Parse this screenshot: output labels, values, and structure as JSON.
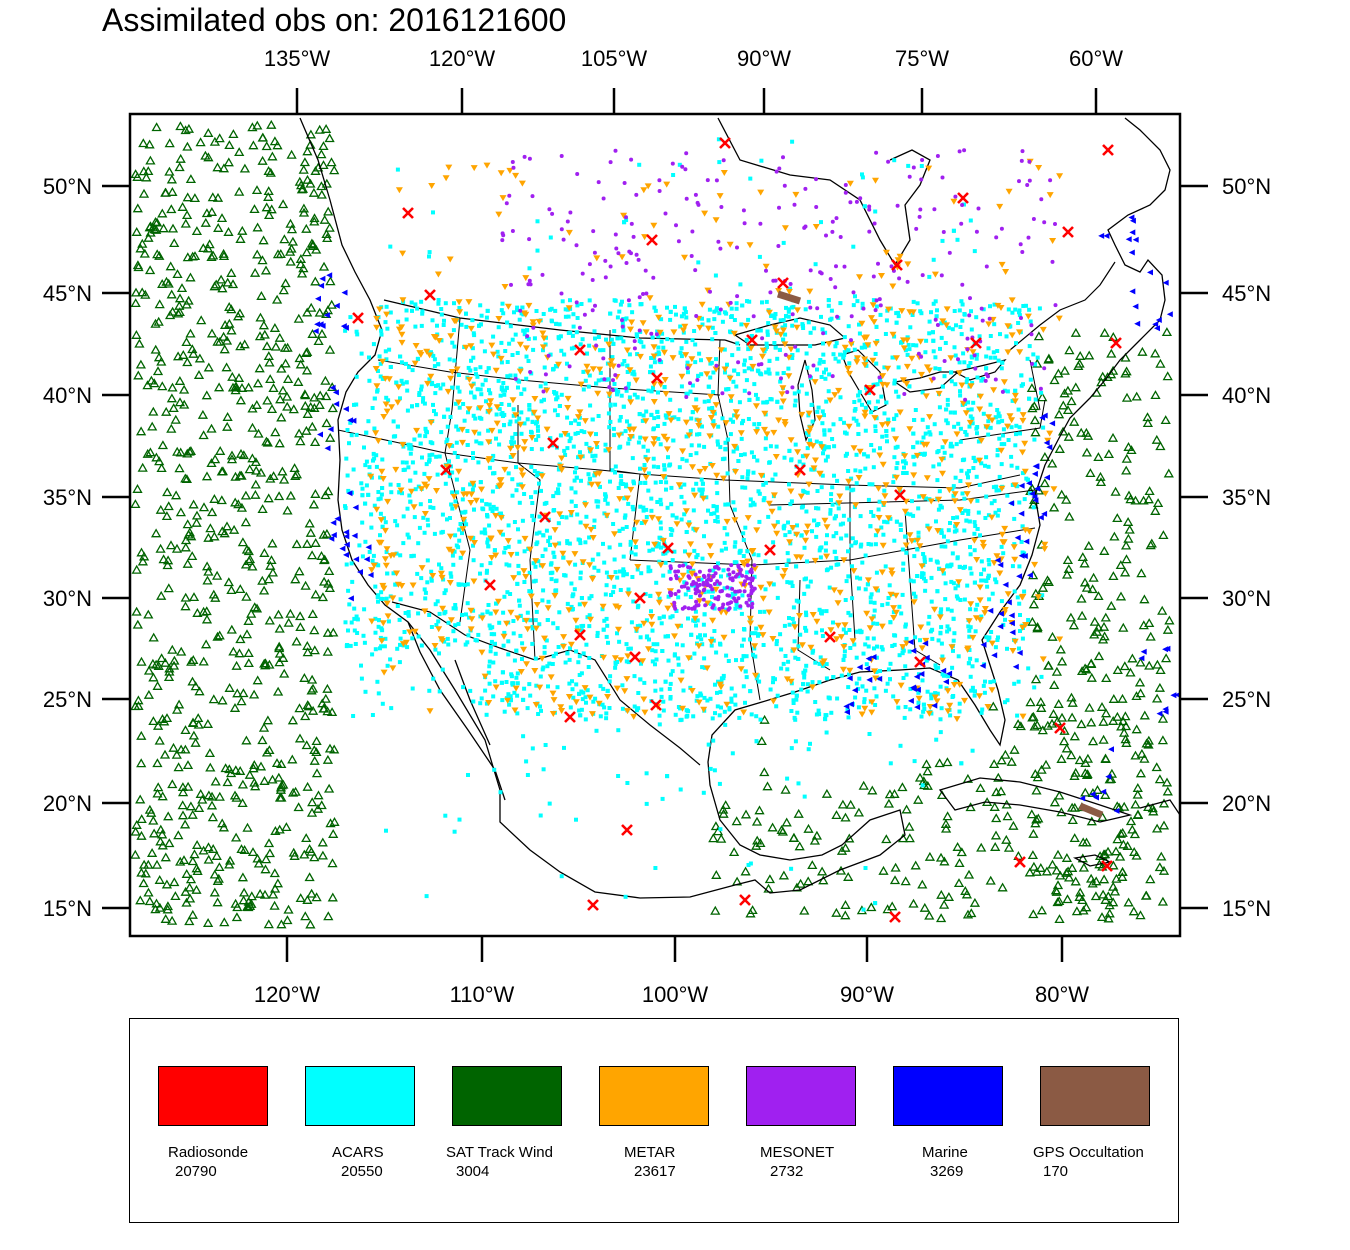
{
  "title": "Assimilated obs on: 2016121600",
  "top_ticks": [
    "135°W",
    "120°W",
    "105°W",
    "90°W",
    "75°W",
    "60°W"
  ],
  "bottom_ticks": [
    "120°W",
    "110°W",
    "100°W",
    "90°W",
    "80°W"
  ],
  "lat_ticks": [
    "50°N",
    "45°N",
    "40°N",
    "35°N",
    "30°N",
    "25°N",
    "20°N",
    "15°N"
  ],
  "legend": [
    {
      "name": "Radiosonde",
      "count": "20790",
      "color": "#ff0000"
    },
    {
      "name": "ACARS",
      "count": "20550",
      "color": "#00ffff"
    },
    {
      "name": "SAT Track Wind",
      "count": "3004",
      "color": "#006400"
    },
    {
      "name": "METAR",
      "count": "23617",
      "color": "#ffa500"
    },
    {
      "name": "MESONET",
      "count": "2732",
      "color": "#a020f0"
    },
    {
      "name": "Marine",
      "count": "3269",
      "color": "#0000ff"
    },
    {
      "name": "GPS Occultation",
      "count": "170",
      "color": "#8b5a44"
    }
  ]
}
